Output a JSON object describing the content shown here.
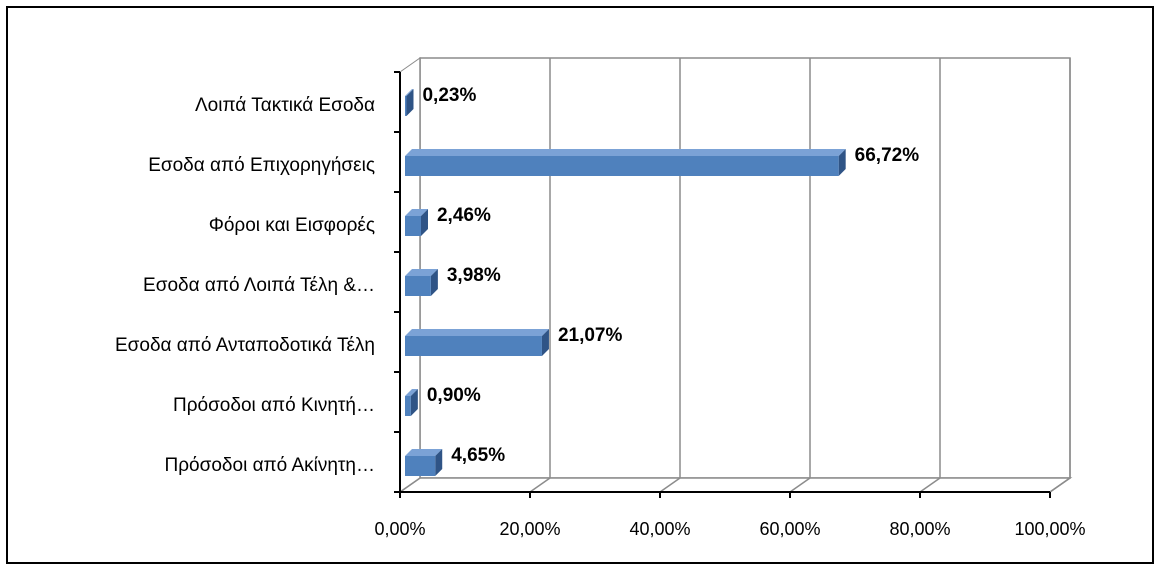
{
  "chart_data": {
    "type": "bar",
    "orientation": "horizontal",
    "categories": [
      "Λοιπά Τακτικά Εσοδα",
      "Εσοδα από Επιχορηγήσεις",
      "Φόροι και Εισφορές",
      "Εσοδα από Λοιπά Τέλη &…",
      "Εσοδα από Ανταποδοτικά Τέλη",
      "Πρόσοδοι από Κινητή…",
      "Πρόσοδοι από Ακίνητη…"
    ],
    "values": [
      0.23,
      66.72,
      2.46,
      3.98,
      21.07,
      0.9,
      4.65
    ],
    "value_labels": [
      "0,23%",
      "66,72%",
      "2,46%",
      "3,98%",
      "21,07%",
      "0,90%",
      "4,65%"
    ],
    "color": "#4f81bd",
    "xlim": [
      0,
      100
    ],
    "xticks": [
      {
        "value": 0,
        "label": "0,00%"
      },
      {
        "value": 20,
        "label": "20,00%"
      },
      {
        "value": 40,
        "label": "40,00%"
      },
      {
        "value": 60,
        "label": "60,00%"
      },
      {
        "value": 80,
        "label": "80,00%"
      },
      {
        "value": 100,
        "label": "100,00%"
      }
    ],
    "grid": true
  }
}
